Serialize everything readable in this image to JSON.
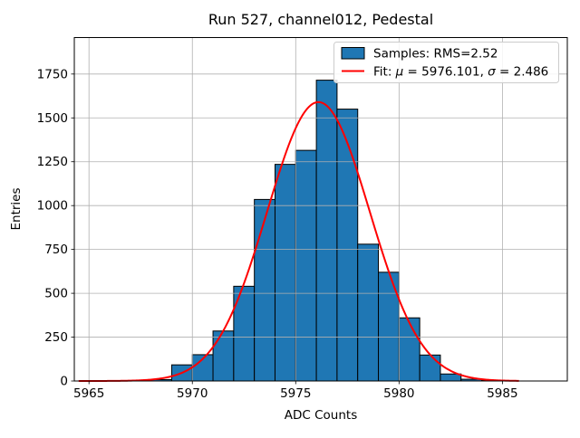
{
  "chart_data": {
    "type": "bar",
    "subtype": "histogram-with-gaussian-fit",
    "title": "Run 527, channel012, Pedestal",
    "xlabel": "ADC Counts",
    "ylabel": "Entries",
    "xlim": [
      5964.29,
      5988.14
    ],
    "ylim": [
      0,
      1958
    ],
    "grid": true,
    "legend_position": "upper right",
    "xticks": [
      5965,
      5970,
      5975,
      5980,
      5985
    ],
    "yticks": [
      0,
      250,
      500,
      750,
      1000,
      1250,
      1500,
      1750
    ],
    "bar_color": "#1f77b4",
    "bar_edge_color": "#000000",
    "fit_color": "#ff0000",
    "grid_color": "#b0b0b0",
    "bins": {
      "start": 5968,
      "width": 1,
      "edges": [
        5968,
        5969,
        5970,
        5971,
        5972,
        5973,
        5974,
        5975,
        5976,
        5977,
        5978,
        5979,
        5980,
        5981,
        5982,
        5983,
        5984,
        5985
      ],
      "counts": [
        8,
        92,
        150,
        285,
        540,
        1035,
        1235,
        1315,
        1715,
        1550,
        780,
        620,
        360,
        148,
        40,
        10,
        3
      ]
    },
    "fit": {
      "mu": 5976.101,
      "sigma": 2.486,
      "amplitude": 1590,
      "x_range": [
        5964.5,
        5985.8
      ]
    },
    "legend": {
      "samples_label": "Samples: RMS=2.52",
      "fit_label": "Fit: μ = 5976.101, σ = 2.486",
      "fit_parts": {
        "prefix": "Fit: ",
        "mu_symbol": "μ",
        "mu_value": " = 5976.101, ",
        "sigma_symbol": "σ",
        "sigma_value": " = 2.486"
      }
    }
  }
}
